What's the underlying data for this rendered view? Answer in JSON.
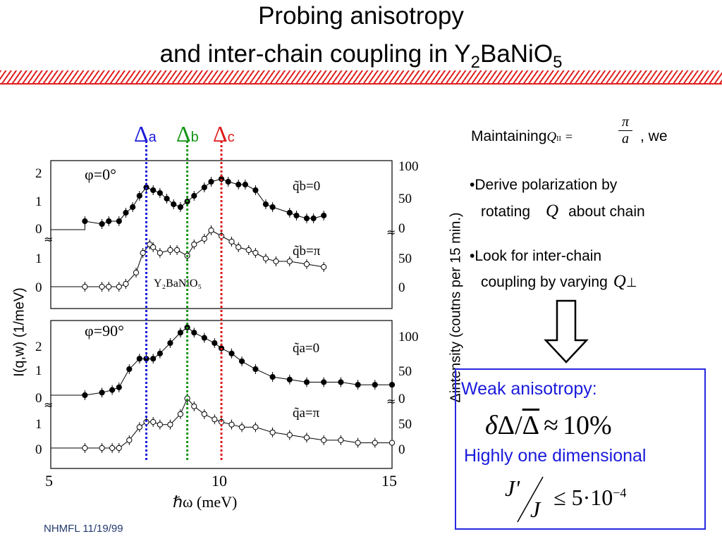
{
  "slide": {
    "title_line1": "Probing anisotropy",
    "title_line2_prefix": "and inter-chain coupling in Y",
    "title_sub2": "2",
    "title_mid": "BaNiO",
    "title_sub5": "5",
    "footer": "NHMFL  11/19/99"
  },
  "markers": [
    {
      "delta": "Δ",
      "sub": "a",
      "color": "#1a1adc",
      "x": 7.8
    },
    {
      "delta": "Δ",
      "sub": "b",
      "color": "#139413",
      "x": 9.0
    },
    {
      "delta": "Δ",
      "sub": "c",
      "color": "#dd1a1a",
      "x": 10.0
    }
  ],
  "figure": {
    "ylabel_left": "I(q,w) (1/meV)",
    "ylabel_right": "Δintensity (coutns per 15 min.)",
    "xlabel": "ℏω (meV)",
    "x_ticks": [
      "5",
      "10",
      "15"
    ],
    "sample_label": "Y₂BaNiO₅",
    "panels": [
      {
        "phi": "φ=0°",
        "curves": [
          {
            "label": "q̃b=0",
            "filled": true
          },
          {
            "label": "q̃b=π",
            "filled": false
          }
        ]
      },
      {
        "phi": "φ=90°",
        "curves": [
          {
            "label": "q̃a=0",
            "filled": true
          },
          {
            "label": "q̃a=π",
            "filled": false
          }
        ]
      }
    ],
    "left_ticks": [
      "2",
      "1",
      "0"
    ],
    "right_ticks": [
      "100",
      "50",
      "0"
    ]
  },
  "bullets": {
    "maintaining": "Maintaining",
    "q_par": "Q",
    "q_sub": "II",
    "eq": "=",
    "pi": "π",
    "a": "a",
    "we": ", we",
    "b1_line1": "•Derive polarization by",
    "b1_line2a": "rotating",
    "b1_q": "Q",
    "b1_line2b": "about chain",
    "b2_line1": "•Look for inter-chain",
    "b2_line2": "coupling by varying",
    "b2_q": "Q",
    "b2_perp": "⊥"
  },
  "box": {
    "weak": "Weak anisotropy:",
    "formula1": "δΔ/Δ ≈ 10%",
    "delta": "δ",
    "Delta": "Δ",
    "slash": "/",
    "Delta_bar": "Δ",
    "approx": "≈",
    "ten_pct": "10%",
    "highly": "Highly one dimensional",
    "jprime": "J'",
    "j": "J",
    "leq": "≤",
    "five": "5",
    "dot": "·",
    "ten": "10",
    "exp": "−4"
  },
  "chart_data": {
    "type": "scatter",
    "xlabel": "ℏω (meV)",
    "ylabel": "I(q,w) (1/meV)",
    "xlim": [
      5,
      15
    ],
    "series": [
      {
        "name": "φ=0° q̃b=0",
        "x": [
          6.0,
          6.5,
          6.7,
          7.0,
          7.2,
          7.4,
          7.6,
          7.8,
          8.0,
          8.2,
          8.4,
          8.6,
          8.8,
          9.0,
          9.2,
          9.5,
          9.7,
          10.0,
          10.2,
          10.5,
          10.7,
          11.0,
          11.3,
          11.5,
          12.0,
          12.2,
          12.5,
          12.7,
          13.0
        ],
        "y": [
          0.3,
          0.2,
          0.3,
          0.3,
          0.6,
          0.8,
          1.2,
          1.5,
          1.4,
          1.3,
          1.1,
          0.9,
          0.8,
          1.0,
          1.2,
          1.5,
          1.7,
          1.8,
          1.7,
          1.6,
          1.6,
          1.4,
          0.9,
          0.8,
          0.6,
          0.5,
          0.4,
          0.4,
          0.5
        ]
      },
      {
        "name": "φ=0° q̃b=π",
        "x": [
          6.0,
          6.5,
          6.7,
          7.0,
          7.2,
          7.5,
          7.7,
          7.9,
          8.0,
          8.2,
          8.5,
          8.7,
          9.0,
          9.2,
          9.5,
          9.7,
          10.0,
          10.3,
          10.5,
          10.8,
          11.0,
          11.3,
          11.6,
          12.0,
          12.5,
          13.0
        ],
        "y": [
          0.0,
          0.0,
          0.0,
          0.0,
          0.1,
          0.5,
          1.2,
          1.5,
          1.4,
          1.2,
          1.3,
          1.3,
          1.1,
          1.5,
          1.7,
          2.0,
          1.8,
          1.6,
          1.4,
          1.3,
          1.2,
          1.0,
          0.9,
          0.9,
          0.8,
          0.7
        ]
      },
      {
        "name": "φ=90° q̃a=0",
        "x": [
          6.0,
          6.5,
          6.8,
          7.0,
          7.3,
          7.6,
          7.8,
          8.0,
          8.2,
          8.5,
          8.8,
          9.0,
          9.2,
          9.5,
          9.8,
          10.0,
          10.3,
          10.6,
          11.0,
          11.5,
          12.0,
          12.5,
          13.0,
          13.5,
          14.0,
          14.5,
          15.0
        ],
        "y": [
          0.0,
          0.1,
          0.2,
          0.3,
          1.0,
          1.4,
          1.4,
          1.4,
          1.6,
          2.0,
          2.4,
          2.6,
          2.4,
          2.2,
          2.0,
          1.8,
          1.6,
          1.3,
          1.0,
          0.7,
          0.6,
          0.5,
          0.5,
          0.5,
          0.4,
          0.4,
          0.4
        ]
      },
      {
        "name": "φ=90° q̃a=π",
        "x": [
          6.0,
          6.5,
          6.8,
          7.0,
          7.3,
          7.6,
          7.8,
          8.0,
          8.2,
          8.5,
          8.8,
          9.0,
          9.2,
          9.5,
          9.8,
          10.0,
          10.3,
          10.6,
          11.0,
          11.5,
          12.0,
          12.5,
          13.0,
          13.5,
          14.0,
          14.5,
          15.0
        ],
        "y": [
          0.0,
          0.0,
          0.0,
          0.0,
          0.3,
          0.8,
          1.0,
          1.0,
          0.9,
          0.9,
          1.3,
          1.9,
          1.6,
          1.3,
          1.1,
          1.0,
          0.9,
          0.8,
          0.8,
          0.6,
          0.5,
          0.4,
          0.3,
          0.3,
          0.2,
          0.2,
          0.2
        ]
      }
    ]
  }
}
